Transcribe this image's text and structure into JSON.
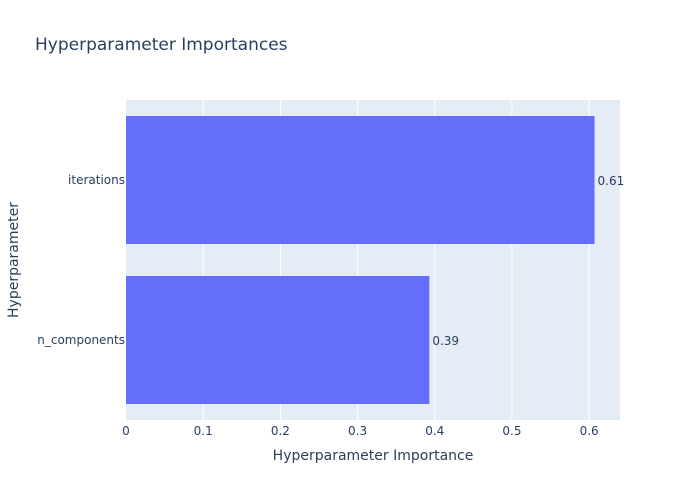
{
  "chart_data": {
    "type": "bar",
    "orientation": "horizontal",
    "title": "Hyperparameter Importances",
    "xlabel": "Hyperparameter Importance",
    "ylabel": "Hyperparameter",
    "categories": [
      "iterations",
      "n_components"
    ],
    "values": [
      0.607,
      0.393
    ],
    "data_labels": [
      "0.61",
      "0.39"
    ],
    "xlim": [
      0,
      0.64
    ],
    "xticks": [
      0,
      0.1,
      0.2,
      0.3,
      0.4,
      0.5,
      0.6
    ],
    "xtick_labels": [
      "0",
      "0.1",
      "0.2",
      "0.3",
      "0.4",
      "0.5",
      "0.6"
    ],
    "grid": true,
    "colors": {
      "bar": "#636efa",
      "plot_background": "#e5ecf6",
      "grid": "#ffffff",
      "text": "#2a3f5f"
    }
  }
}
